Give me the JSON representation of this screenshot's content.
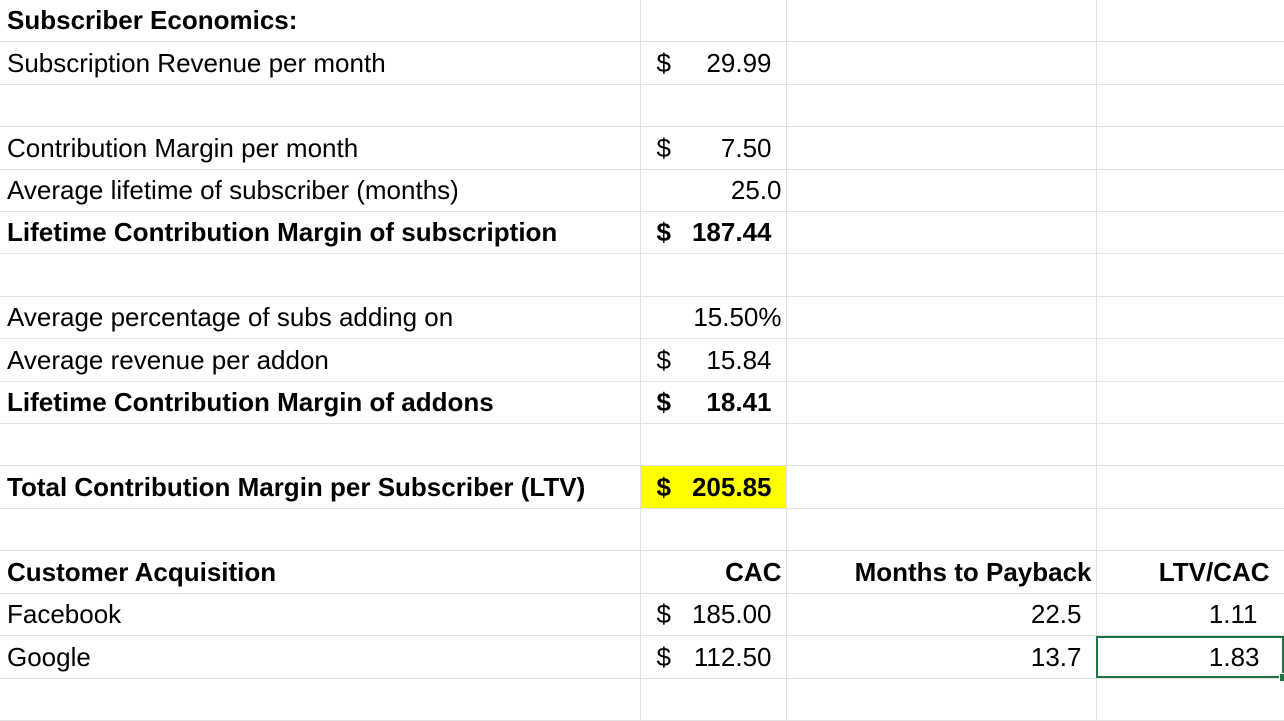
{
  "rows": {
    "r1": {
      "a": "Subscriber Economics:"
    },
    "r2": {
      "a": "Subscription Revenue per month",
      "b_sym": "$",
      "b_num": "29.99"
    },
    "r4": {
      "a": "Contribution Margin per month",
      "b_sym": "$",
      "b_num": "7.50"
    },
    "r5": {
      "a": "Average lifetime of subscriber (months)",
      "b": "25.0"
    },
    "r6": {
      "a": "Lifetime Contribution Margin of subscription",
      "b_sym": "$",
      "b_num": "187.44"
    },
    "r8": {
      "a": "Average percentage of subs adding on",
      "b": "15.50%"
    },
    "r9": {
      "a": "Average revenue per addon",
      "b_sym": "$",
      "b_num": "15.84"
    },
    "r10": {
      "a": "Lifetime Contribution Margin of addons",
      "b_sym": "$",
      "b_num": "18.41"
    },
    "r12": {
      "a": "Total Contribution Margin per Subscriber (LTV)",
      "b_sym": "$",
      "b_num": "205.85"
    },
    "r14": {
      "a": "Customer Acquisition",
      "b": "CAC",
      "c": "Months to Payback",
      "d": "LTV/CAC"
    },
    "r15": {
      "a": "Facebook",
      "b_sym": "$",
      "b_num": "185.00",
      "c": "22.5",
      "d": "1.11"
    },
    "r16": {
      "a": "Google",
      "b_sym": "$",
      "b_num": "112.50",
      "c": "13.7",
      "d": "1.83"
    }
  },
  "colors": {
    "highlight": "#ffff00",
    "selection": "#217346",
    "gridline": "#e1e1e1"
  }
}
